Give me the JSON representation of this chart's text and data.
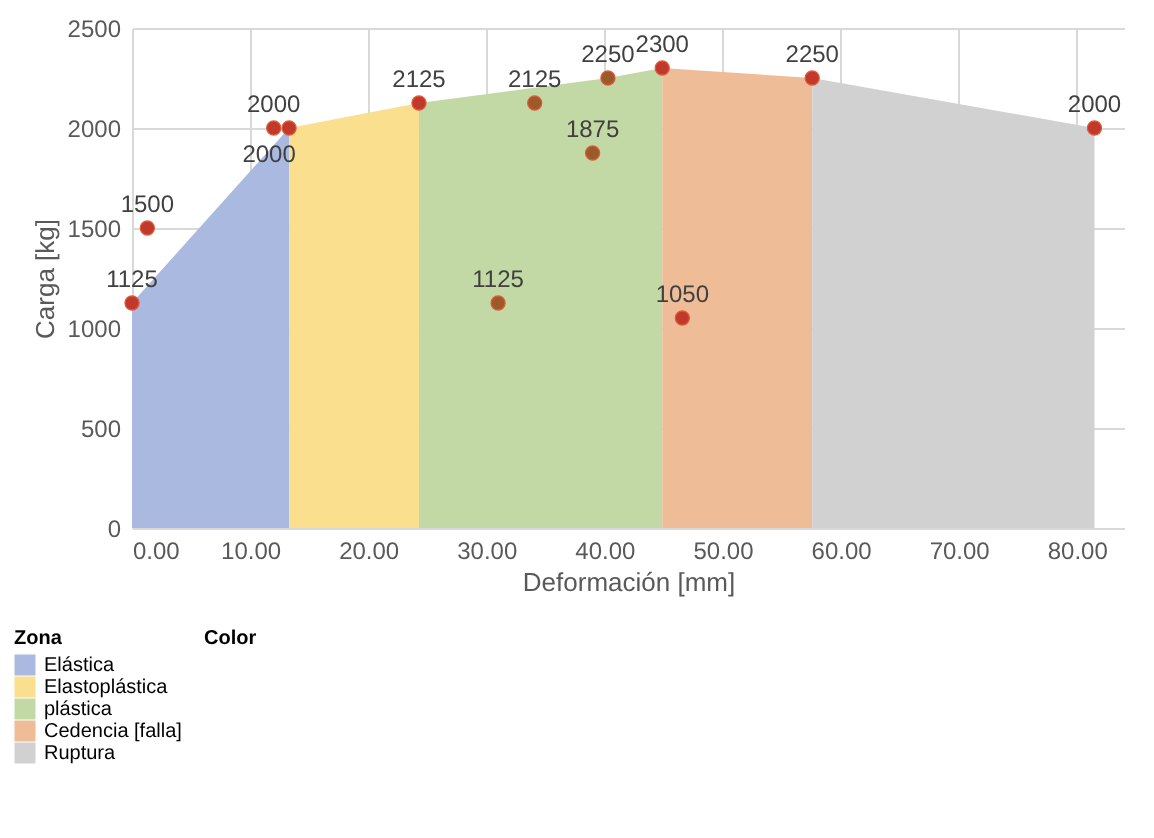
{
  "chart_data": {
    "type": "area",
    "xlabel": "Deformación [mm]",
    "ylabel": "Carga [kg]",
    "legend_title": "Zona",
    "annotations": [
      "Color"
    ],
    "xlim": [
      0,
      84
    ],
    "xticks": [
      {
        "value": 0,
        "label": "0.00"
      },
      {
        "value": 10,
        "label": "10.00"
      },
      {
        "value": 20,
        "label": "20.00"
      },
      {
        "value": 30,
        "label": "30.00"
      },
      {
        "value": 40,
        "label": "40.00"
      },
      {
        "value": 50,
        "label": "50.00"
      },
      {
        "value": 60,
        "label": "60.00"
      },
      {
        "value": 70,
        "label": "70.00"
      },
      {
        "value": 80,
        "label": "80.00"
      }
    ],
    "ylim": [
      0,
      2500
    ],
    "yticks": [
      0,
      500,
      1000,
      1500,
      2000,
      2500
    ],
    "grid": true,
    "legend": "bottom left",
    "series": [
      {
        "name": "Elástica",
        "color": "#a9b9df",
        "x": [
          0,
          13.3
        ],
        "values": [
          1125,
          2000
        ]
      },
      {
        "name": "Elastoplástica",
        "color": "#f9df8e",
        "x": [
          13.3,
          24.3
        ],
        "values": [
          2000,
          2125
        ]
      },
      {
        "name": "plástica",
        "color": "#c3d9a5",
        "x": [
          24.3,
          40.3,
          44.9
        ],
        "values": [
          2125,
          2250,
          2300
        ]
      },
      {
        "name": "Cedencia [falla]",
        "color": "#eebc97",
        "x": [
          44.9,
          57.6
        ],
        "values": [
          2300,
          2250
        ]
      },
      {
        "name": "Ruptura",
        "color": "#d1d1d1",
        "x": [
          57.6,
          81.5
        ],
        "values": [
          2250,
          2000
        ]
      },
      {
        "type": "scatter",
        "color": "#c0392b",
        "x": [
          0,
          1.3,
          12,
          13.3,
          24.3,
          44.9,
          46.6,
          57.6,
          81.5
        ],
        "values": [
          1125,
          1500,
          2000,
          2000,
          2125,
          2300,
          1050,
          2250,
          2000
        ],
        "value_labels": [
          "1125",
          "1500",
          "2000",
          "2000",
          "2125",
          "2300",
          "1050",
          "2250",
          "2000"
        ]
      },
      {
        "type": "scatter",
        "color": "#9c5a2b",
        "x": [
          31,
          34.1,
          39,
          40.3
        ],
        "values": [
          1125,
          2125,
          1875,
          2250
        ],
        "value_labels": [
          "1125",
          "2125",
          "1875",
          "2250"
        ]
      }
    ]
  }
}
